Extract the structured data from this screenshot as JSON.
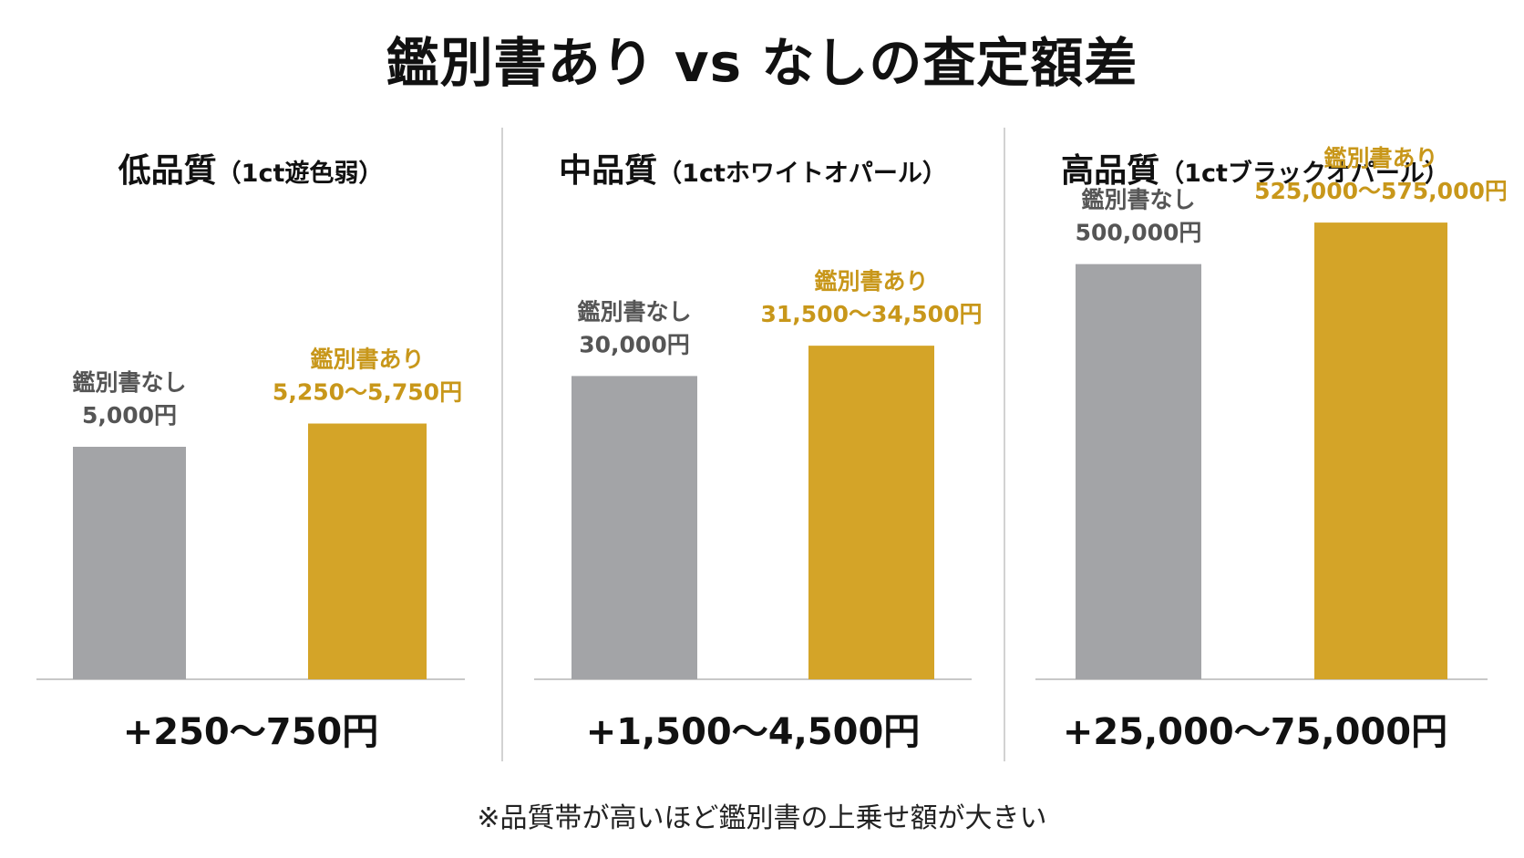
{
  "title": "鑑別書あり vs なしの査定額差",
  "footnote": "※品質帯が高いほど鑑別書の上乗せ額が大きい",
  "colors": {
    "without": "#a3a4a7",
    "with": "#d4a428",
    "with_text": "#c8971a",
    "without_text": "#555555",
    "axis": "#c8c8c8"
  },
  "chart_data": [
    {
      "type": "bar",
      "title": "低品質",
      "subtitle": "（1ct遊色弱）",
      "categories": [
        "鑑別書なし",
        "鑑別書あり"
      ],
      "value_labels": [
        "5,000円",
        "5,250〜5,750円"
      ],
      "values": [
        5000,
        5500
      ],
      "ylim": [
        0,
        10000
      ],
      "difference": "+250〜750円"
    },
    {
      "type": "bar",
      "title": "中品質",
      "subtitle": "（1ctホワイトオパール）",
      "categories": [
        "鑑別書なし",
        "鑑別書あり"
      ],
      "value_labels": [
        "30,000円",
        "31,500〜34,500円"
      ],
      "values": [
        30000,
        33000
      ],
      "ylim": [
        0,
        46000
      ],
      "difference": "+1,500〜4,500円"
    },
    {
      "type": "bar",
      "title": "高品質",
      "subtitle": "（1ctブラックオパール）",
      "categories": [
        "鑑別書なし",
        "鑑別書あり"
      ],
      "value_labels": [
        "500,000円",
        "525,000〜575,000円"
      ],
      "values": [
        500000,
        550000
      ],
      "ylim": [
        0,
        560000
      ],
      "difference": "+25,000〜75,000円"
    }
  ]
}
